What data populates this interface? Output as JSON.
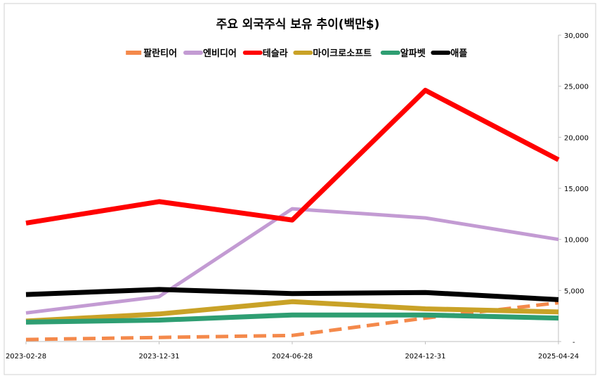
{
  "chart_data": {
    "type": "line",
    "title": "주요 외국주식 보유 추이(백만$)",
    "categories": [
      "2023-02-28",
      "2023-12-31",
      "2024-06-28",
      "2024-12-31",
      "2025-04-24"
    ],
    "y_axis": {
      "position": "right",
      "range": [
        0,
        30000
      ],
      "tick_labels": [
        "-",
        "5,000",
        "10,000",
        "15,000",
        "20,000",
        "25,000",
        "30,000"
      ],
      "tick_values": [
        0,
        5000,
        10000,
        15000,
        20000,
        25000,
        30000
      ]
    },
    "grid": false,
    "legend_position": "top",
    "series": [
      {
        "name": "팔란티어",
        "color": "#F4894B",
        "style": "dashed",
        "values": [
          200,
          400,
          600,
          2300,
          3800
        ]
      },
      {
        "name": "엔비디어",
        "color": "#C39BD3",
        "style": "solid",
        "values": [
          2800,
          4400,
          13000,
          12100,
          10000
        ]
      },
      {
        "name": "테슬라",
        "color": "#FF0000",
        "style": "solid",
        "values": [
          11600,
          13700,
          11900,
          24600,
          17800
        ]
      },
      {
        "name": "마이크로소프트",
        "color": "#C9A227",
        "style": "solid",
        "values": [
          2000,
          2700,
          3900,
          3200,
          2900
        ]
      },
      {
        "name": "알파벳",
        "color": "#2E9E72",
        "style": "solid",
        "values": [
          1900,
          2100,
          2600,
          2600,
          2300
        ]
      },
      {
        "name": "애플",
        "color": "#000000",
        "style": "solid",
        "values": [
          4600,
          5100,
          4700,
          4800,
          4100
        ]
      }
    ]
  }
}
